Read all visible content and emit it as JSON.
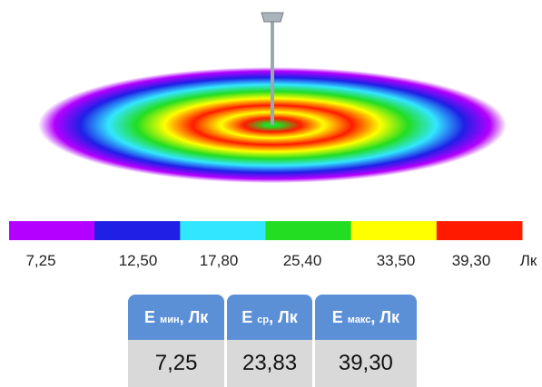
{
  "legend": {
    "colors": [
      "#b300ff",
      "#1f1fe6",
      "#33e6ff",
      "#22dd22",
      "#ffff00",
      "#ff1a00"
    ],
    "labels": [
      "7,25",
      "12,50",
      "17,80",
      "25,40",
      "33,50",
      "39,30"
    ],
    "unit": "Лк"
  },
  "table": {
    "header": [
      {
        "main": "E",
        "sub": "мин",
        "unit": ", Лк"
      },
      {
        "main": "E",
        "sub": "ср",
        "unit": ", Лк"
      },
      {
        "main": "E",
        "sub": "макс",
        "unit": ", Лк"
      }
    ],
    "rows": [
      [
        "7,25",
        "23,83",
        "39,30"
      ]
    ]
  }
}
